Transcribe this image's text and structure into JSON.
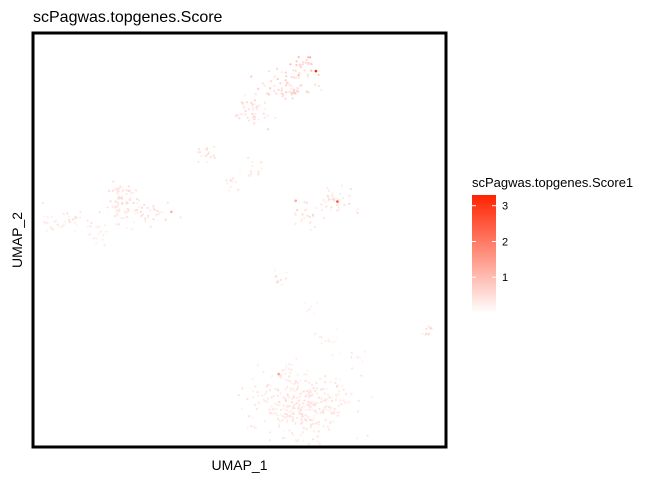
{
  "chart_data": {
    "type": "scatter",
    "title": "scPagwas.topgenes.Score",
    "xlabel": "UMAP_1",
    "ylabel": "UMAP_2",
    "xlim": [
      0,
      100
    ],
    "ylim": [
      0,
      100
    ],
    "grid": false,
    "legend": {
      "title": "scPagwas.topgenes.Score1",
      "position": "right",
      "ticks": [
        1,
        2,
        3
      ],
      "range": [
        0,
        3.3
      ],
      "color_low": "#ffffff",
      "color_high": "#ff2200"
    },
    "clusters": [
      {
        "cx": 53,
        "cy": 81,
        "sx": 2.0,
        "sy": 2.0,
        "n": 45,
        "score": 0.45
      },
      {
        "cx": 61.5,
        "cy": 87,
        "sx": 4.0,
        "sy": 2.0,
        "n": 65,
        "score": 0.6
      },
      {
        "cx": 65,
        "cy": 92,
        "sx": 1.5,
        "sy": 1.2,
        "n": 25,
        "score": 0.8
      },
      {
        "cx": 42,
        "cy": 71,
        "sx": 1.5,
        "sy": 1.3,
        "n": 18,
        "score": 0.35
      },
      {
        "cx": 54,
        "cy": 67,
        "sx": 1.2,
        "sy": 1.5,
        "n": 12,
        "score": 0.35
      },
      {
        "cx": 48.5,
        "cy": 64,
        "sx": 1.2,
        "sy": 1.0,
        "n": 12,
        "score": 0.35
      },
      {
        "cx": 71,
        "cy": 60,
        "sx": 1.5,
        "sy": 1.5,
        "n": 16,
        "score": 0.35
      },
      {
        "cx": 74,
        "cy": 59,
        "sx": 2.0,
        "sy": 2.0,
        "n": 22,
        "score": 0.4
      },
      {
        "cx": 66,
        "cy": 56,
        "sx": 2.0,
        "sy": 1.5,
        "n": 24,
        "score": 0.45
      },
      {
        "cx": 22,
        "cy": 60,
        "sx": 2.0,
        "sy": 2.0,
        "n": 50,
        "score": 0.45
      },
      {
        "cx": 28,
        "cy": 56.5,
        "sx": 2.5,
        "sy": 1.5,
        "n": 35,
        "score": 0.4
      },
      {
        "cx": 22,
        "cy": 57,
        "sx": 1.5,
        "sy": 1.5,
        "n": 18,
        "score": 0.35
      },
      {
        "cx": 7,
        "cy": 54.5,
        "sx": 3.0,
        "sy": 1.5,
        "n": 38,
        "score": 0.35
      },
      {
        "cx": 15,
        "cy": 52,
        "sx": 1.5,
        "sy": 2.0,
        "n": 18,
        "score": 0.3
      },
      {
        "cx": 59,
        "cy": 41,
        "sx": 1.0,
        "sy": 0.8,
        "n": 10,
        "score": 0.4
      },
      {
        "cx": 67,
        "cy": 34,
        "sx": 1.0,
        "sy": 1.2,
        "n": 6,
        "score": 0.3
      },
      {
        "cx": 71,
        "cy": 27,
        "sx": 1.5,
        "sy": 1.5,
        "n": 12,
        "score": 0.25
      },
      {
        "cx": 95.5,
        "cy": 28,
        "sx": 1.0,
        "sy": 0.8,
        "n": 10,
        "score": 0.5
      },
      {
        "cx": 79,
        "cy": 21.5,
        "sx": 1.2,
        "sy": 0.8,
        "n": 8,
        "score": 0.3
      },
      {
        "cx": 65,
        "cy": 10,
        "sx": 6.0,
        "sy": 4.5,
        "n": 370,
        "score": 0.35
      },
      {
        "cx": 60,
        "cy": 17,
        "sx": 1.0,
        "sy": 1.2,
        "n": 8,
        "score": 0.4
      }
    ],
    "highlights": [
      {
        "x": 68.5,
        "y": 90.8,
        "score": 3.3
      },
      {
        "x": 63.6,
        "y": 59.5,
        "score": 1.3
      },
      {
        "x": 73.7,
        "y": 59.3,
        "score": 2.6
      },
      {
        "x": 59.5,
        "y": 17.6,
        "score": 1.4
      },
      {
        "x": 33.5,
        "y": 56.8,
        "score": 1.2
      }
    ]
  }
}
